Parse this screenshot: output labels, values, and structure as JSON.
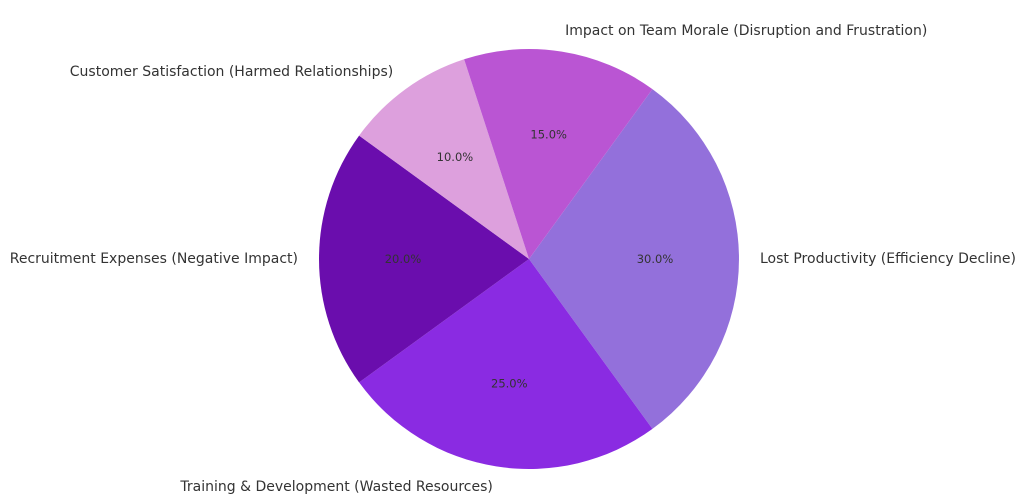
{
  "chart_data": {
    "type": "pie",
    "title": "",
    "categories": [
      "Lost Productivity (Efficiency Decline)",
      "Training & Development (Wasted Resources)",
      "Recruitment Expenses (Negative Impact)",
      "Customer Satisfaction (Harmed Relationships)",
      "Impact on Team Morale (Disruption and Frustration)"
    ],
    "values": [
      30.0,
      25.0,
      20.0,
      10.0,
      15.0
    ],
    "value_labels": [
      "30.0%",
      "25.0%",
      "20.0%",
      "10.0%",
      "15.0%"
    ],
    "colors": [
      "#9370DB",
      "#8A2BE2",
      "#6A0DAD",
      "#DDA0DD",
      "#BA55D3"
    ],
    "start_angle_deg": 54,
    "direction": "clockwise",
    "legend": "none"
  }
}
